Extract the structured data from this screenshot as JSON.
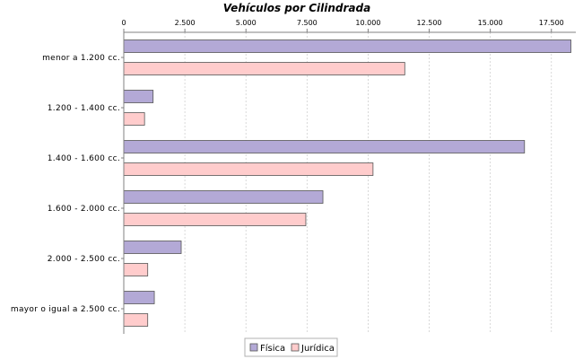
{
  "chart_data": {
    "type": "bar",
    "orientation": "horizontal",
    "title": "Vehículos por Cilindrada",
    "xlabel": "",
    "ylabel": "",
    "xlim": [
      0,
      18500
    ],
    "x_ticks": [
      0,
      2500,
      5000,
      7500,
      10000,
      12500,
      15000,
      17500
    ],
    "x_tick_labels": [
      "0",
      "2.500",
      "5.000",
      "7.500",
      "10.000",
      "12.500",
      "15.000",
      "17.500"
    ],
    "axis_position": "top",
    "grid": true,
    "legend_position": "bottom-center",
    "categories": [
      "menor a 1.200 cc.",
      "1.200 - 1.400 cc.",
      "1.400 - 1.600 cc.",
      "1.600 - 2.000 cc.",
      "2.000 - 2.500 cc.",
      "mayor o igual a 2.500 cc."
    ],
    "series": [
      {
        "name": "Física",
        "color": "#b3a9d6",
        "values": [
          18300,
          1200,
          16400,
          8150,
          2350,
          1250
        ]
      },
      {
        "name": "Jurídica",
        "color": "#ffcccc",
        "values": [
          11500,
          850,
          10200,
          7450,
          980,
          980
        ]
      }
    ]
  }
}
